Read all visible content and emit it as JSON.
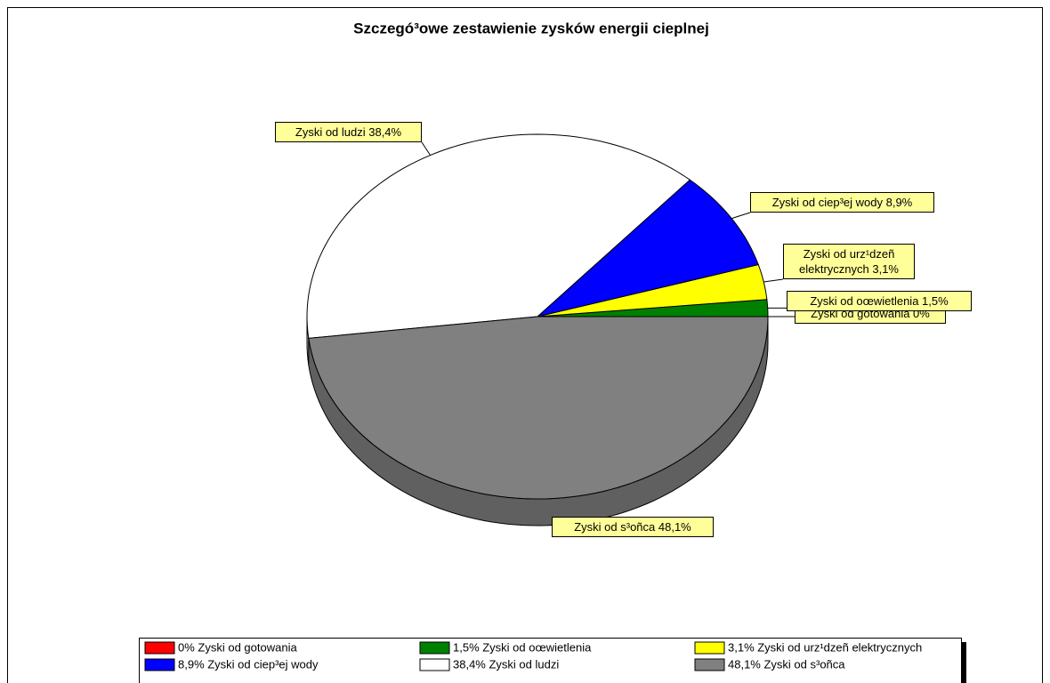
{
  "chart_data": {
    "type": "pie",
    "title": "Szczegó³owe zestawienie zysków energii cieplnej",
    "categories": [
      "0% Zyski od gotowania",
      "1,5% Zyski od oœwietlenia",
      "3,1% Zyski od urz¹dzeñ elektrycznych",
      "8,9% Zyski od ciep³ej wody",
      "38,4% Zyski od ludzi",
      "48,1% Zyski od s³oñca"
    ],
    "values": [
      0,
      1.5,
      3.1,
      8.9,
      38.4,
      48.1
    ],
    "value_labels": [
      "Zyski od gotowania 0%",
      "Zyski od oœwietlenia 1,5%",
      "Zyski od urz¹dzeñ elektrycznych 3,1%",
      "Zyski od ciep³ej wody 8,9%",
      "Zyski od ludzi 38,4%",
      "Zyski od s³oñca 48,1%"
    ],
    "colors": [
      "#ff0000",
      "#008000",
      "#ffff00",
      "#0000ff",
      "#ffffff",
      "#808080"
    ]
  }
}
